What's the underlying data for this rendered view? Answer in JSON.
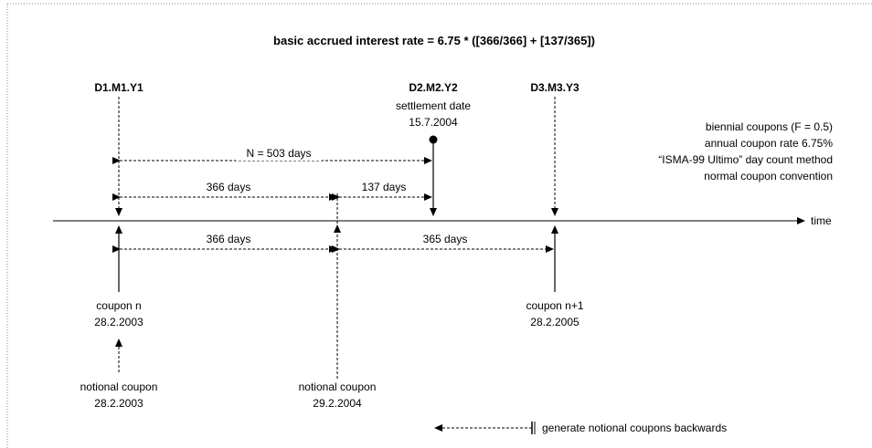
{
  "title": "basic accrued interest rate = 6.75 * ([366/366] + [137/365])",
  "date_labels": {
    "d1": "D1.M1.Y1",
    "d2": "D2.M2.Y2",
    "d3": "D3.M3.Y3"
  },
  "settlement": {
    "label": "settlement date",
    "date": "15.7.2004"
  },
  "info_lines": [
    "biennial coupons (F = 0.5)",
    "annual coupon rate 6.75%",
    "“ISMA-99 Ultimo” day count method",
    "normal coupon convention"
  ],
  "spans": {
    "n_total": "N = 503 days",
    "upper_366": "366 days",
    "upper_137": "137 days",
    "lower_366": "366 days",
    "lower_365": "365 days"
  },
  "time_label": "time",
  "coupon_n": {
    "label": "coupon n",
    "date": "28.2.2003"
  },
  "coupon_n1": {
    "label": "coupon n+1",
    "date": "28.2.2005"
  },
  "notional_1": {
    "label": "notional coupon",
    "date": "28.2.2003"
  },
  "notional_2": {
    "label": "notional coupon",
    "date": "29.2.2004"
  },
  "legend_text": "generate notional coupons backwards"
}
